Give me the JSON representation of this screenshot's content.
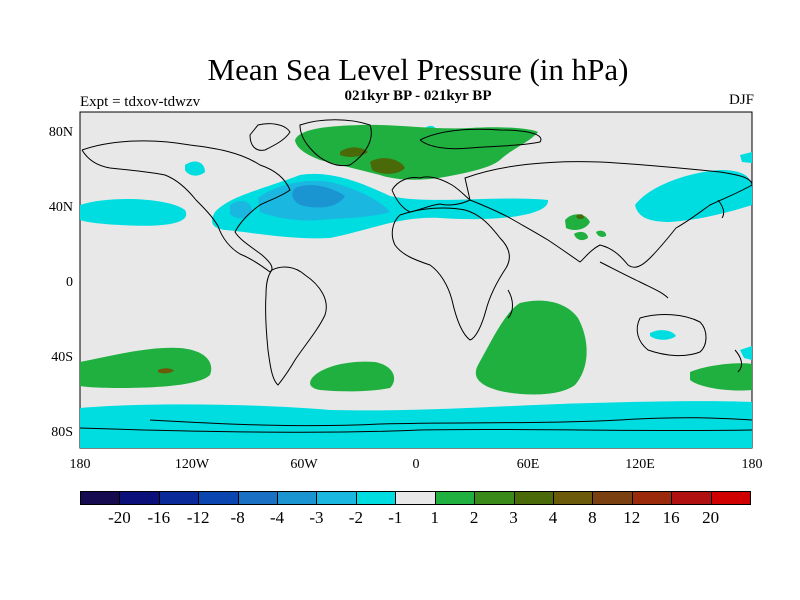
{
  "header": {
    "title": "Mean Sea Level Pressure (in hPa)",
    "subtitle": "021kyr BP - 021kyr BP",
    "left_label": "Expt = tdxov-tdwzv",
    "right_label": "DJF"
  },
  "map": {
    "lat_labels": [
      "80N",
      "40N",
      "0",
      "40S",
      "80S"
    ],
    "lon_labels": [
      "180",
      "120W",
      "60W",
      "0",
      "60E",
      "120E",
      "180"
    ],
    "land_color": "#e8e8e8",
    "border_color": "#000000"
  },
  "colorbar": {
    "colors": [
      "#160a50",
      "#0a0f7a",
      "#0a2a9a",
      "#0a45b0",
      "#1a70c2",
      "#1a95d2",
      "#1ab8e0",
      "#00dde0",
      "#e8e8e8",
      "#20b040",
      "#3a8a1a",
      "#4a6a0a",
      "#6a5a0a",
      "#7a4010",
      "#9a2a0a",
      "#b01010",
      "#d00000"
    ],
    "labels": [
      "-20",
      "-16",
      "-12",
      "-8",
      "-4",
      "-3",
      "-2",
      "-1",
      "1",
      "2",
      "3",
      "4",
      "8",
      "12",
      "16",
      "20"
    ]
  }
}
